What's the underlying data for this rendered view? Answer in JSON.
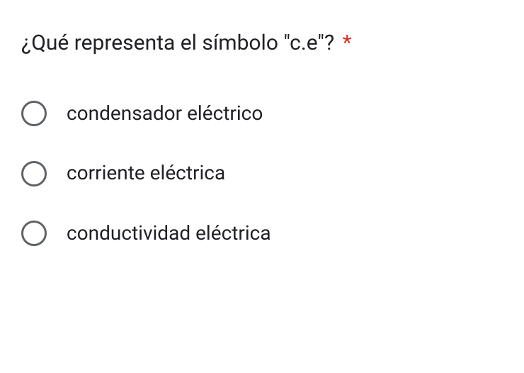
{
  "question": {
    "title": "¿Qué representa el símbolo \"c.e\"?",
    "required_marker": "*",
    "options": [
      {
        "label": "condensador eléctrico"
      },
      {
        "label": "corriente eléctrica"
      },
      {
        "label": "conductividad eléctrica"
      }
    ]
  },
  "colors": {
    "text": "#202124",
    "radio_border": "#5f6368",
    "required": "#d93025",
    "background": "#ffffff"
  }
}
